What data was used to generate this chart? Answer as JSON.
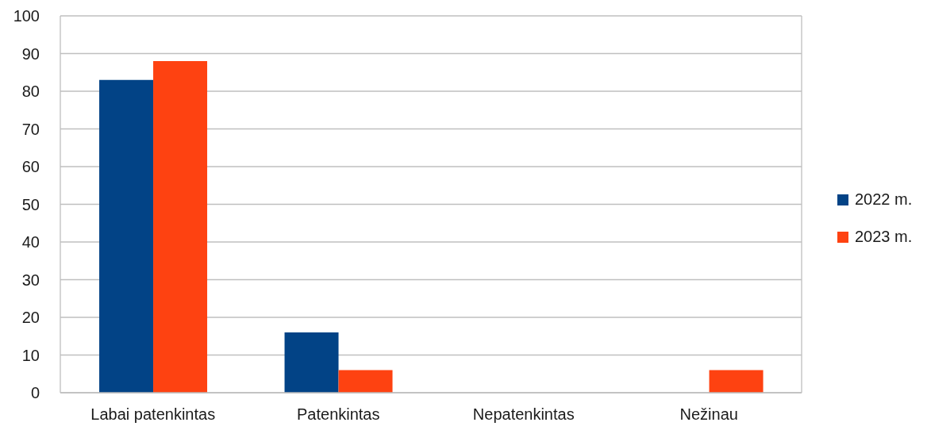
{
  "chart_data": {
    "type": "bar",
    "categories": [
      "Labai patenkintas",
      "Patenkintas",
      "Nepatenkintas",
      "Nežinau"
    ],
    "series": [
      {
        "name": "2022 m.",
        "color": "#024386",
        "values": [
          83,
          16,
          0,
          0
        ]
      },
      {
        "name": "2023 m.",
        "color": "#fe4211",
        "values": [
          88,
          6,
          0,
          6
        ]
      }
    ],
    "ylim": [
      0,
      100
    ],
    "yticks": [
      0,
      10,
      20,
      30,
      40,
      50,
      60,
      70,
      80,
      90,
      100
    ],
    "grid": "y",
    "legend": "right"
  }
}
